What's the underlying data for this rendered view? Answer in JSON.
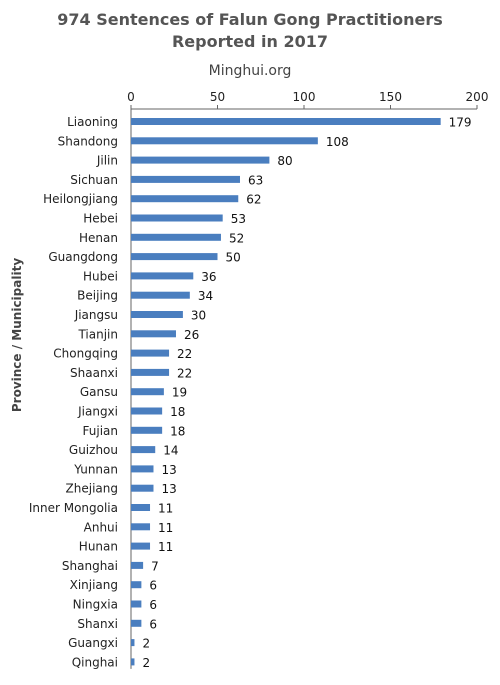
{
  "chart_data": {
    "type": "bar",
    "orientation": "horizontal",
    "title_line1": "974 Sentences of Falun Gong Practitioners",
    "title_line2": "Reported in 2017",
    "subtitle": "Minghui.org",
    "ylabel": "Province / Municipality",
    "xlabel": "",
    "xlim": [
      0,
      200
    ],
    "xticks": [
      0,
      50,
      100,
      150,
      200
    ],
    "x_axis_position": "top",
    "grid": false,
    "bar_color": "#4a7ebf",
    "categories": [
      "Liaoning",
      "Shandong",
      "Jilin",
      "Sichuan",
      "Heilongjiang",
      "Hebei",
      "Henan",
      "Guangdong",
      "Hubei",
      "Beijing",
      "Jiangsu",
      "Tianjin",
      "Chongqing",
      "Shaanxi",
      "Gansu",
      "Jiangxi",
      "Fujian",
      "Guizhou",
      "Yunnan",
      "Zhejiang",
      "Inner Mongolia",
      "Anhui",
      "Hunan",
      "Shanghai",
      "Xinjiang",
      "Ningxia",
      "Shanxi",
      "Guangxi",
      "Qinghai"
    ],
    "values": [
      179,
      108,
      80,
      63,
      62,
      53,
      52,
      50,
      36,
      34,
      30,
      26,
      22,
      22,
      19,
      18,
      18,
      14,
      13,
      13,
      11,
      11,
      11,
      7,
      6,
      6,
      6,
      2,
      2
    ]
  }
}
